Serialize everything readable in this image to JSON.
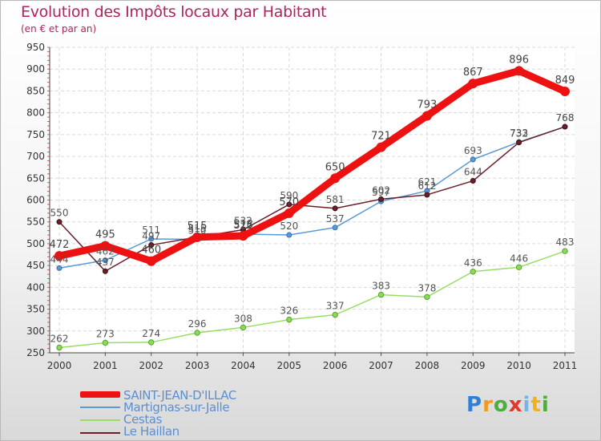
{
  "header": {
    "title": "Evolution des Impôts locaux par Habitant",
    "subtitle": "(en € et par an)"
  },
  "logo": {
    "text": "Proxiti",
    "letters": [
      "P",
      "r",
      "o",
      "x",
      "i",
      "t",
      "i"
    ]
  },
  "chart_data": {
    "type": "line",
    "title": "Evolution des Impôts locaux par Habitant",
    "subtitle": "(en € et par an)",
    "xlabel": "",
    "ylabel": "",
    "ylim": [
      250,
      950
    ],
    "yticks": [
      250,
      300,
      350,
      400,
      450,
      500,
      550,
      600,
      650,
      700,
      750,
      800,
      850,
      900,
      950
    ],
    "grid": true,
    "legend": "bottom-left",
    "categories": [
      "2000",
      "2001",
      "2002",
      "2003",
      "2004",
      "2005",
      "2006",
      "2007",
      "2008",
      "2009",
      "2010",
      "2011"
    ],
    "series": [
      {
        "name": "SAINT-JEAN-D'ILLAC",
        "color": "#ee1111",
        "values": [
          472,
          495,
          460,
          515,
          518,
          570,
          650,
          721,
          793,
          867,
          896,
          849
        ]
      },
      {
        "name": "Martignas-sur-Jalle",
        "color": "#5b9bd5",
        "values": [
          444,
          462,
          511,
          510,
          522,
          520,
          537,
          597,
          621,
          693,
          733,
          768
        ]
      },
      {
        "name": "Cestas",
        "color": "#99dd66",
        "values": [
          262,
          273,
          274,
          296,
          308,
          326,
          337,
          383,
          378,
          436,
          446,
          483
        ]
      },
      {
        "name": "Le Haillan",
        "color": "#6b1f2a",
        "values": [
          550,
          437,
          497,
          515,
          532,
          590,
          581,
          602,
          612,
          644,
          732,
          768
        ]
      }
    ]
  }
}
